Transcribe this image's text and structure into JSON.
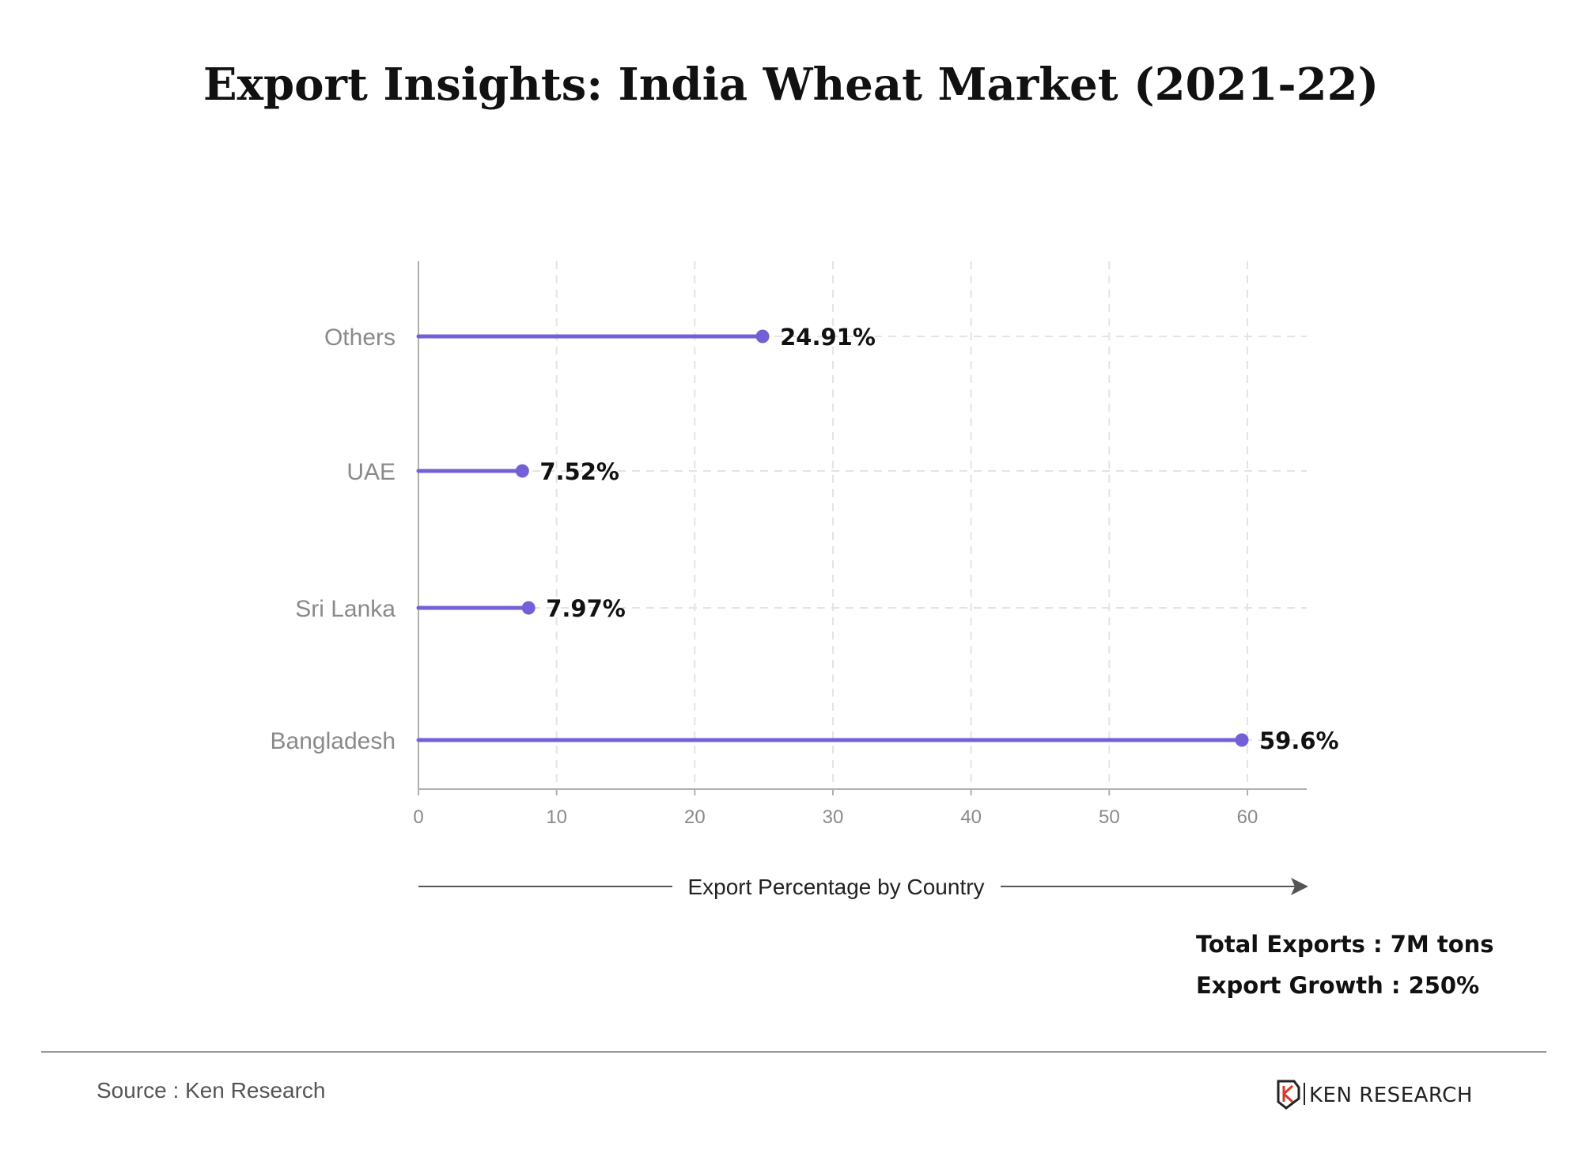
{
  "chart_data": {
    "type": "lollipop",
    "title": "Export Insights: India Wheat Market (2021-22)",
    "xlabel": "Export Percentage by Country",
    "ylabel": "",
    "xlim": [
      0,
      64
    ],
    "xticks": [
      0,
      10,
      20,
      30,
      40,
      50,
      60
    ],
    "categories": [
      "Others",
      "UAE",
      "Sri Lanka",
      "Bangladesh"
    ],
    "values": [
      24.91,
      7.52,
      7.97,
      59.6
    ],
    "value_labels": [
      "24.91%",
      "7.52%",
      "7.97%",
      "59.6%"
    ],
    "grid": true,
    "color": "#7460d6"
  },
  "stats": {
    "total_exports": "Total Exports : 7M tons",
    "export_growth": "Export Growth : 250%"
  },
  "footer": {
    "source": "Source : Ken Research",
    "logo_text": "KEN RESEARCH"
  }
}
